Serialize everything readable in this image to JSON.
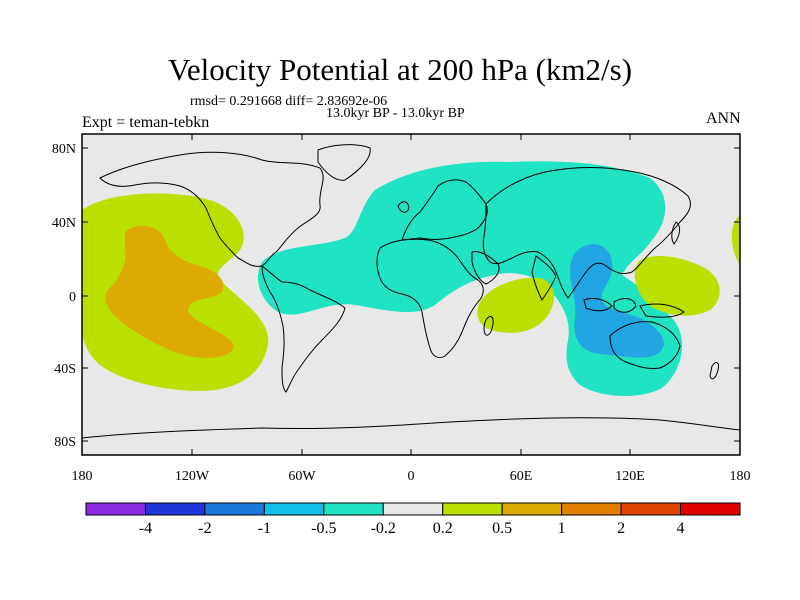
{
  "title": "Velocity Potential at 200 hPa (km2/s)",
  "stats": "rmsd= 0.291668 diff= 2.83692e-06",
  "period": "13.0kyr BP - 13.0kyr BP",
  "expt": "Expt = teman-tebkn",
  "season": "ANN",
  "colors": {
    "background": "#e8e8e8",
    "cyan": "#1fe3c3",
    "blue": "#22a6e3",
    "yellow": "#b9e000",
    "orange": "#dcaa00",
    "coast": "#000000"
  },
  "axes": {
    "lat_ticks": [
      "80N",
      "40N",
      "0",
      "40S",
      "80S"
    ],
    "lon_ticks": [
      "180",
      "120W",
      "60W",
      "0",
      "60E",
      "120E",
      "180"
    ]
  },
  "colorbar": {
    "colors": [
      "#8a2be2",
      "#2136d9",
      "#1b78db",
      "#11bfe9",
      "#1fe3c3",
      "#e8e8e8",
      "#b9e000",
      "#dcaa00",
      "#e07e00",
      "#e04300",
      "#e00000"
    ],
    "labels": [
      "-4",
      "-2",
      "-1",
      "-0.5",
      "-0.2",
      "0.2",
      "0.5",
      "1",
      "2",
      "4"
    ]
  }
}
